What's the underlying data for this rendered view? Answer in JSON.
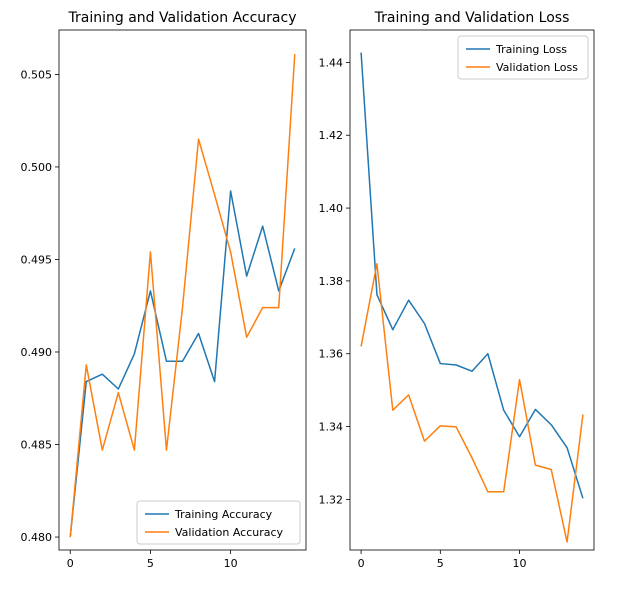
{
  "chart_data": [
    {
      "type": "line",
      "title": "Training and Validation Accuracy",
      "xlabel": "",
      "ylabel": "",
      "xlim": [
        -0.7,
        14.7
      ],
      "ylim": [
        0.4793,
        0.5074
      ],
      "xticks": [
        0,
        5,
        10
      ],
      "yticks": [
        0.48,
        0.485,
        0.49,
        0.495,
        0.5,
        0.505
      ],
      "ytick_labels": [
        "0.480",
        "0.485",
        "0.490",
        "0.495",
        "0.500",
        "0.505"
      ],
      "grid": false,
      "legend_loc": "lower right",
      "x": [
        0,
        1,
        2,
        3,
        4,
        5,
        6,
        7,
        8,
        9,
        10,
        11,
        12,
        13,
        14
      ],
      "series": [
        {
          "name": "Training Accuracy",
          "color": "#1f77b4",
          "values": [
            0.48,
            0.4884,
            0.4888,
            0.488,
            0.4899,
            0.4933,
            0.4895,
            0.4895,
            0.491,
            0.4884,
            0.4987,
            0.4941,
            0.4968,
            0.4933,
            0.4956
          ]
        },
        {
          "name": "Validation Accuracy",
          "color": "#ff7f0e",
          "values": [
            0.48,
            0.4893,
            0.4847,
            0.4878,
            0.4847,
            0.4954,
            0.4847,
            0.4924,
            0.5015,
            0.4985,
            0.4954,
            0.4908,
            0.4924,
            0.4924,
            0.5061
          ]
        }
      ]
    },
    {
      "type": "line",
      "title": "Training and Validation Loss",
      "xlabel": "",
      "ylabel": "",
      "xlim": [
        -0.7,
        14.7
      ],
      "ylim": [
        1.3061,
        1.4489
      ],
      "xticks": [
        0,
        5,
        10
      ],
      "yticks": [
        1.32,
        1.34,
        1.36,
        1.38,
        1.4,
        1.42,
        1.44
      ],
      "ytick_labels": [
        "1.32",
        "1.34",
        "1.36",
        "1.38",
        "1.40",
        "1.42",
        "1.44"
      ],
      "grid": false,
      "legend_loc": "upper right",
      "x": [
        0,
        1,
        2,
        3,
        4,
        5,
        6,
        7,
        8,
        9,
        10,
        11,
        12,
        13,
        14
      ],
      "series": [
        {
          "name": "Training Loss",
          "color": "#1f77b4",
          "values": [
            1.4427,
            1.3762,
            1.3666,
            1.3747,
            1.3683,
            1.3573,
            1.3569,
            1.3552,
            1.36,
            1.3445,
            1.3372,
            1.3447,
            1.3405,
            1.3342,
            1.3203
          ]
        },
        {
          "name": "Validation Loss",
          "color": "#ff7f0e",
          "values": [
            1.362,
            1.3847,
            1.3445,
            1.3487,
            1.336,
            1.3402,
            1.3399,
            1.3314,
            1.3221,
            1.3221,
            1.3529,
            1.3294,
            1.3282,
            1.3083,
            1.3433
          ]
        }
      ]
    }
  ]
}
